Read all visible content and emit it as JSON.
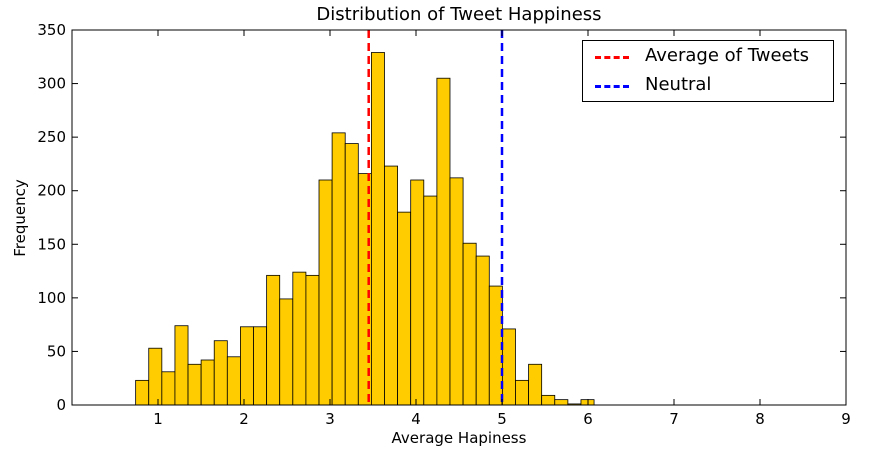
{
  "chart_data": {
    "type": "bar",
    "title": "Distribution of Tweet Happiness",
    "xlabel": "Average Hapiness",
    "ylabel": "Frequency",
    "xlim": [
      0,
      9
    ],
    "ylim": [
      0,
      350
    ],
    "xticks": [
      1,
      2,
      3,
      4,
      5,
      6,
      7,
      8,
      9
    ],
    "yticks": [
      0,
      50,
      100,
      150,
      200,
      250,
      300,
      350
    ],
    "bar_color": "#ffcc00",
    "bin_start": 0.74,
    "bin_width": 0.1523,
    "values": [
      23,
      53,
      31,
      74,
      38,
      42,
      60,
      45,
      73,
      73,
      121,
      99,
      124,
      121,
      210,
      254,
      244,
      216,
      329,
      223,
      180,
      210,
      195,
      305,
      212,
      151,
      139,
      111,
      71,
      23,
      38,
      9,
      5,
      1,
      5
    ],
    "vlines": [
      {
        "name": "Average of Tweets",
        "x": 3.45,
        "color": "#ff0000"
      },
      {
        "name": "Neutral",
        "x": 5.0,
        "color": "#0000ff"
      }
    ],
    "legend_position": "upper-right",
    "grid": false
  }
}
